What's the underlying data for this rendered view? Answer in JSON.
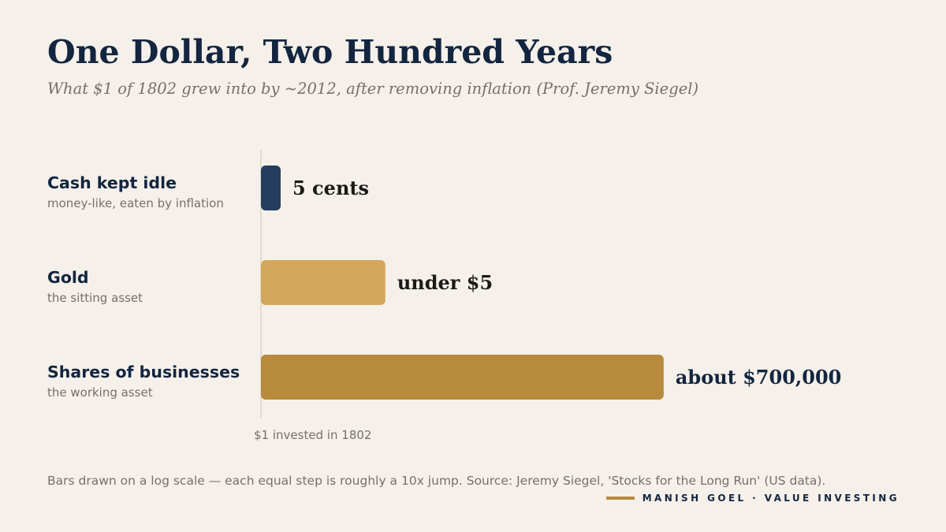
{
  "header": {
    "title": "One Dollar, Two Hundred Years",
    "subtitle": "What $1 of 1802 grew into by ~2012, after removing inflation (Prof. Jeremy Siegel)"
  },
  "chart_data": {
    "type": "bar",
    "orientation": "horizontal",
    "scale": "log",
    "baseline": 1,
    "axis_label": "$1 invested in 1802",
    "categories": [
      "Cash kept idle",
      "Gold",
      "Shares of businesses"
    ],
    "category_notes": [
      "money-like, eaten by inflation",
      "the sitting asset",
      "the working asset"
    ],
    "values": [
      0.05,
      4.5,
      700000
    ],
    "value_labels": [
      "5 cents",
      "under $5",
      "about $700,000"
    ],
    "colors": [
      "#253d5e",
      "#d4a85c",
      "#b88a3c"
    ]
  },
  "footer": {
    "note": "Bars drawn on a log scale — each equal step is roughly a 10x jump. Source: Jeremy Siegel, 'Stocks for the Long Run' (US data).",
    "brand": "MANISH GOEL · VALUE INVESTING"
  }
}
